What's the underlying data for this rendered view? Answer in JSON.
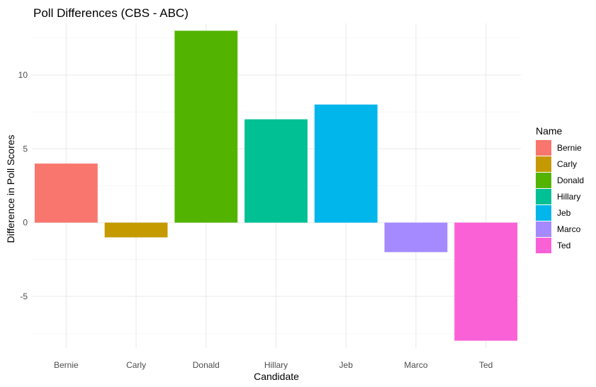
{
  "chart_data": {
    "type": "bar",
    "title": "Poll Differences (CBS - ABC)",
    "xlabel": "Candidate",
    "ylabel": "Difference in Poll Scores",
    "categories": [
      "Bernie",
      "Carly",
      "Donald",
      "Hillary",
      "Jeb",
      "Marco",
      "Ted"
    ],
    "values": [
      4,
      -1,
      13,
      7,
      8,
      -2,
      -8
    ],
    "colors": [
      "#F8766D",
      "#C49A00",
      "#53B400",
      "#00C094",
      "#00B6EB",
      "#A58AFF",
      "#FB61D7"
    ],
    "ylim": [
      -8.5,
      13.5
    ],
    "yticks": [
      -5,
      0,
      5,
      10
    ],
    "ytick_labels": [
      "-5",
      "0",
      "5",
      "10"
    ],
    "grid": true,
    "legend": {
      "title": "Name",
      "placement": "right",
      "entries": [
        "Bernie",
        "Carly",
        "Donald",
        "Hillary",
        "Jeb",
        "Marco",
        "Ted"
      ]
    }
  }
}
